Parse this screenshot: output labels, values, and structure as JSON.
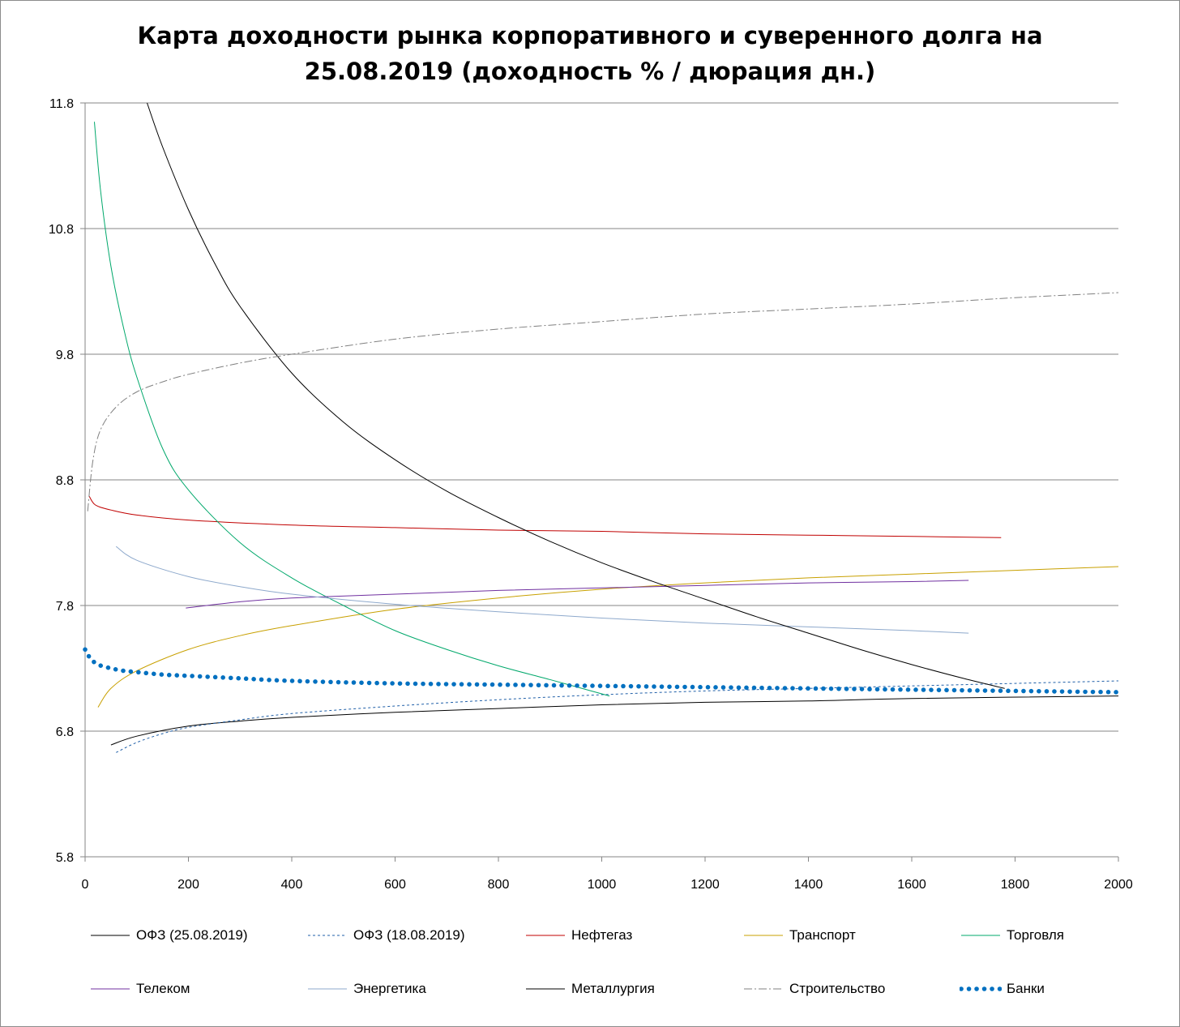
{
  "chart_data": {
    "type": "line",
    "title_lines": [
      "Карта доходности рынка корпоративного и суверенного долга на",
      "25.08.2019 (доходность % / дюрация дн.)"
    ],
    "xlabel": "",
    "ylabel": "",
    "xlim": [
      0,
      2000
    ],
    "ylim": [
      5.8,
      11.8
    ],
    "x_ticks": [
      "0",
      "200",
      "400",
      "600",
      "800",
      "1000",
      "1200",
      "1400",
      "1600",
      "1800",
      "2000"
    ],
    "y_ticks": [
      "5.8",
      "6.8",
      "7.8",
      "8.8",
      "9.8",
      "10.8",
      "11.8"
    ],
    "grid": "horizontal",
    "legend_position": "bottom",
    "series": [
      {
        "name": "ОФЗ (25.08.2019)",
        "color": "#000000",
        "dash": "solid",
        "width": 1,
        "x": [
          50,
          100,
          200,
          300,
          400,
          600,
          800,
          1000,
          1200,
          1400,
          1600,
          2000
        ],
        "y": [
          6.69,
          6.76,
          6.84,
          6.88,
          6.91,
          6.95,
          6.98,
          7.01,
          7.03,
          7.04,
          7.06,
          7.08
        ]
      },
      {
        "name": "ОФЗ (18.08.2019)",
        "color": "#1f5fa8",
        "dash": "3,3",
        "width": 1,
        "x": [
          60,
          100,
          150,
          200,
          300,
          400,
          600,
          800,
          1000,
          1200,
          1400,
          1600,
          1800,
          2000
        ],
        "y": [
          6.63,
          6.71,
          6.78,
          6.83,
          6.89,
          6.94,
          7.0,
          7.05,
          7.09,
          7.12,
          7.14,
          7.16,
          7.18,
          7.2
        ]
      },
      {
        "name": "Нефтегаз",
        "color": "#c00000",
        "dash": "solid",
        "width": 1,
        "x": [
          8,
          20,
          50,
          100,
          200,
          400,
          600,
          800,
          1000,
          1200,
          1400,
          1600,
          1773
        ],
        "y": [
          8.67,
          8.6,
          8.56,
          8.52,
          8.48,
          8.44,
          8.42,
          8.4,
          8.39,
          8.37,
          8.36,
          8.35,
          8.34
        ]
      },
      {
        "name": "Транспорт",
        "color": "#c8a000",
        "dash": "solid",
        "width": 1,
        "x": [
          25,
          50,
          100,
          200,
          300,
          400,
          600,
          800,
          1000,
          1200,
          1400,
          1600,
          1800,
          2000
        ],
        "y": [
          6.99,
          7.14,
          7.28,
          7.45,
          7.56,
          7.64,
          7.77,
          7.86,
          7.93,
          7.98,
          8.02,
          8.05,
          8.08,
          8.11
        ]
      },
      {
        "name": "Торговля",
        "color": "#00a86b",
        "dash": "solid",
        "width": 1,
        "x": [
          18,
          30,
          50,
          75,
          100,
          150,
          200,
          300,
          400,
          500,
          600,
          700,
          800,
          900,
          1015
        ],
        "y": [
          11.65,
          11.1,
          10.5,
          10.0,
          9.62,
          9.05,
          8.72,
          8.3,
          8.02,
          7.8,
          7.6,
          7.45,
          7.32,
          7.21,
          7.08
        ]
      },
      {
        "name": "Телеком",
        "color": "#7030a0",
        "dash": "solid",
        "width": 1,
        "x": [
          195,
          300,
          400,
          600,
          800,
          1000,
          1200,
          1400,
          1600,
          1710
        ],
        "y": [
          7.78,
          7.83,
          7.86,
          7.89,
          7.92,
          7.94,
          7.96,
          7.98,
          7.99,
          8.0
        ]
      },
      {
        "name": "Энергетика",
        "color": "#8ea9cc",
        "dash": "solid",
        "width": 1,
        "x": [
          60,
          100,
          200,
          300,
          400,
          600,
          800,
          1000,
          1200,
          1400,
          1600,
          1710
        ],
        "y": [
          8.27,
          8.16,
          8.03,
          7.95,
          7.89,
          7.81,
          7.75,
          7.7,
          7.66,
          7.63,
          7.6,
          7.58
        ]
      },
      {
        "name": "Металлургия",
        "color": "#000000",
        "dash": "solid",
        "width": 1,
        "x": [
          120,
          150,
          200,
          250,
          300,
          400,
          500,
          600,
          700,
          800,
          900,
          1000,
          1100,
          1200,
          1300,
          1400,
          1500,
          1600,
          1700,
          1780
        ],
        "y": [
          11.8,
          11.45,
          10.95,
          10.53,
          10.18,
          9.65,
          9.26,
          8.96,
          8.71,
          8.5,
          8.31,
          8.14,
          7.99,
          7.85,
          7.71,
          7.58,
          7.45,
          7.33,
          7.22,
          7.14
        ]
      },
      {
        "name": "Строительство",
        "color": "#808080",
        "dash": "10,3,2,3",
        "width": 1,
        "x": [
          5,
          15,
          30,
          60,
          100,
          150,
          200,
          300,
          400,
          600,
          800,
          1000,
          1200,
          1400,
          1600,
          1800,
          2000
        ],
        "y": [
          8.55,
          8.95,
          9.2,
          9.38,
          9.5,
          9.58,
          9.64,
          9.73,
          9.8,
          9.92,
          10.0,
          10.06,
          10.12,
          10.16,
          10.2,
          10.25,
          10.29
        ]
      },
      {
        "name": "Банки",
        "color": "#0070c0",
        "dash": "0.1,9.4",
        "width": 5.5,
        "x": [
          0,
          10,
          25,
          50,
          75,
          100,
          150,
          200,
          300,
          400,
          600,
          800,
          1000,
          1200,
          1400,
          1600,
          1800,
          2000
        ],
        "y": [
          7.45,
          7.38,
          7.33,
          7.3,
          7.28,
          7.27,
          7.25,
          7.24,
          7.22,
          7.2,
          7.18,
          7.17,
          7.16,
          7.15,
          7.14,
          7.13,
          7.12,
          7.11
        ]
      }
    ]
  }
}
